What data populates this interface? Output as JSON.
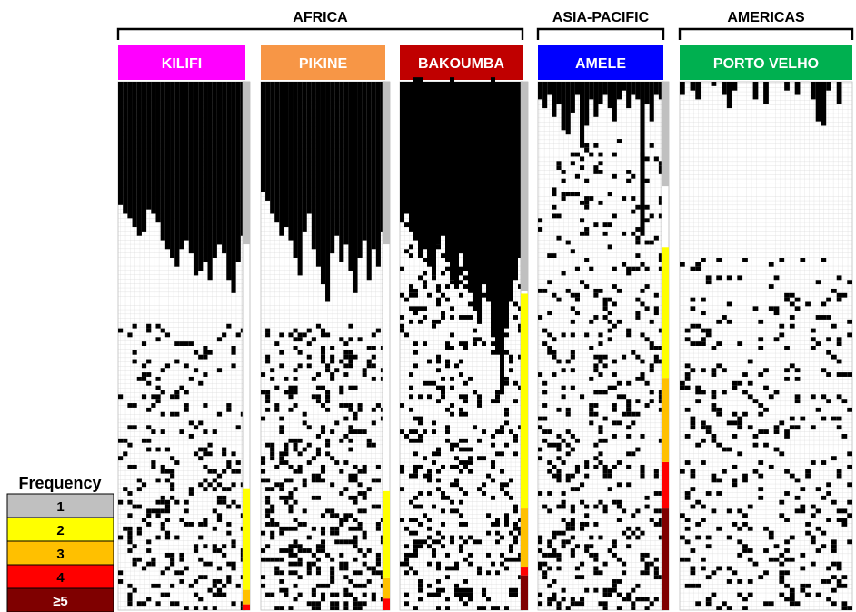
{
  "chart_data": {
    "type": "heatmap",
    "regions": [
      {
        "label": "AFRICA",
        "panels": [
          0,
          1,
          2
        ]
      },
      {
        "label": "ASIA-PACIFIC",
        "panels": [
          3
        ]
      },
      {
        "label": "AMERICAS",
        "panels": [
          4
        ]
      }
    ],
    "panels": [
      {
        "name": "KILIFI",
        "color": "#ff00ff",
        "n_columns": 27,
        "n_rows": 120,
        "freq_bands": {
          "1": 56,
          "2": 35,
          "3": 5,
          "4": 2,
          "5": 0
        },
        "single_bars": [
          28,
          30,
          31,
          33,
          35,
          34,
          29,
          30,
          32,
          36,
          38,
          40,
          42,
          38,
          36,
          39,
          44,
          43,
          41,
          45,
          40,
          37,
          39,
          45,
          48,
          41,
          35
        ],
        "shared_density": 0.16,
        "shared_seed": 11
      },
      {
        "name": "PIKINE",
        "color": "#f79646",
        "n_columns": 27,
        "n_rows": 120,
        "freq_bands": {
          "1": 56,
          "2": 30,
          "3": 7,
          "4": 4,
          "5": 0
        },
        "single_bars": [
          25,
          27,
          30,
          32,
          35,
          33,
          36,
          40,
          44,
          34,
          30,
          38,
          42,
          46,
          50,
          39,
          35,
          41,
          37,
          43,
          48,
          40,
          36,
          45,
          38,
          42,
          34
        ],
        "shared_density": 0.2,
        "shared_seed": 23
      },
      {
        "name": "BAKOUMBA",
        "color": "#c00000",
        "n_columns": 27,
        "n_rows": 120,
        "freq_bands": {
          "1": 72,
          "2": 74,
          "3": 20,
          "4": 3,
          "5": 12
        },
        "single_bars": [
          32,
          30,
          34,
          36,
          40,
          38,
          42,
          44,
          37,
          35,
          41,
          45,
          47,
          39,
          43,
          48,
          52,
          55,
          46,
          50,
          58,
          62,
          70,
          56,
          50,
          45,
          40
        ],
        "shared_density": 0.14,
        "shared_seed": 37
      },
      {
        "name": "AMELE",
        "color": "#0000ff",
        "n_columns": 27,
        "n_rows": 120,
        "freq_bands": {
          "1": 36,
          "2": 45,
          "3": 29,
          "4": 16,
          "5": 35
        },
        "single_bars": [
          4,
          6,
          3,
          8,
          5,
          11,
          12,
          7,
          3,
          15,
          10,
          4,
          8,
          5,
          3,
          6,
          9,
          4,
          2,
          6,
          3,
          4,
          35,
          5,
          9,
          3,
          4
        ],
        "shared_density": 0.16,
        "shared_seed": 51
      },
      {
        "name": "PORTO VELHO",
        "color": "#00b050",
        "n_columns": 33,
        "n_rows": 120,
        "freq_bands": {
          "1": 0,
          "2": 0,
          "3": 0,
          "4": 0,
          "5": 0
        },
        "single_bars": [
          3,
          0,
          2,
          4,
          0,
          0,
          1,
          0,
          3,
          6,
          2,
          0,
          0,
          0,
          4,
          0,
          5,
          0,
          0,
          0,
          2,
          0,
          3,
          0,
          0,
          4,
          9,
          10,
          2,
          0,
          5,
          0,
          0
        ],
        "shared_density": 0.11,
        "shared_seed": 67
      }
    ],
    "legend": {
      "title": "Frequency",
      "items": [
        {
          "label": "1",
          "color": "#c0c0c0",
          "text_color": "#000000"
        },
        {
          "label": "2",
          "color": "#ffff00",
          "text_color": "#000000"
        },
        {
          "label": "3",
          "color": "#ffc000",
          "text_color": "#000000"
        },
        {
          "label": "4",
          "color": "#ff0000",
          "text_color": "#000000"
        },
        {
          "label": "≥5",
          "color": "#7f0000",
          "text_color": "#ffffff"
        }
      ]
    }
  }
}
